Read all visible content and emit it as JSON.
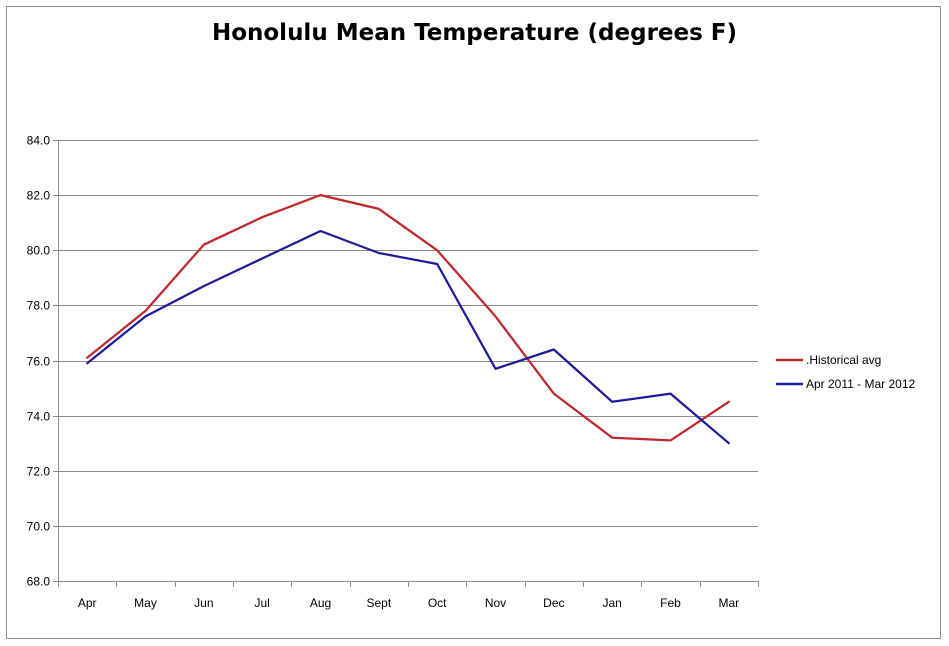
{
  "chart_data": {
    "type": "line",
    "title": "Honolulu Mean Temperature (degrees F)",
    "xlabel": "",
    "ylabel": "",
    "categories": [
      "Apr",
      "May",
      "Jun",
      "Jul",
      "Aug",
      "Sept",
      "Oct",
      "Nov",
      "Dec",
      "Jan",
      "Feb",
      "Mar"
    ],
    "ylim": [
      68.0,
      84.0
    ],
    "yticks": [
      "68.0",
      "70.0",
      "72.0",
      "74.0",
      "76.0",
      "78.0",
      "80.0",
      "82.0",
      "84.0"
    ],
    "grid": true,
    "legend_position": "right",
    "series": [
      {
        "name": ".Historical avg",
        "color": "#c0282d",
        "values": [
          76.1,
          77.8,
          80.2,
          81.2,
          82.0,
          81.5,
          80.0,
          77.6,
          74.8,
          73.2,
          73.1,
          74.5
        ]
      },
      {
        "name": "Apr 2011 - Mar 2012",
        "color": "#1c1c9a",
        "values": [
          75.9,
          77.6,
          78.7,
          79.7,
          80.7,
          79.9,
          79.5,
          75.7,
          76.4,
          74.5,
          74.8,
          73.0
        ]
      }
    ]
  }
}
